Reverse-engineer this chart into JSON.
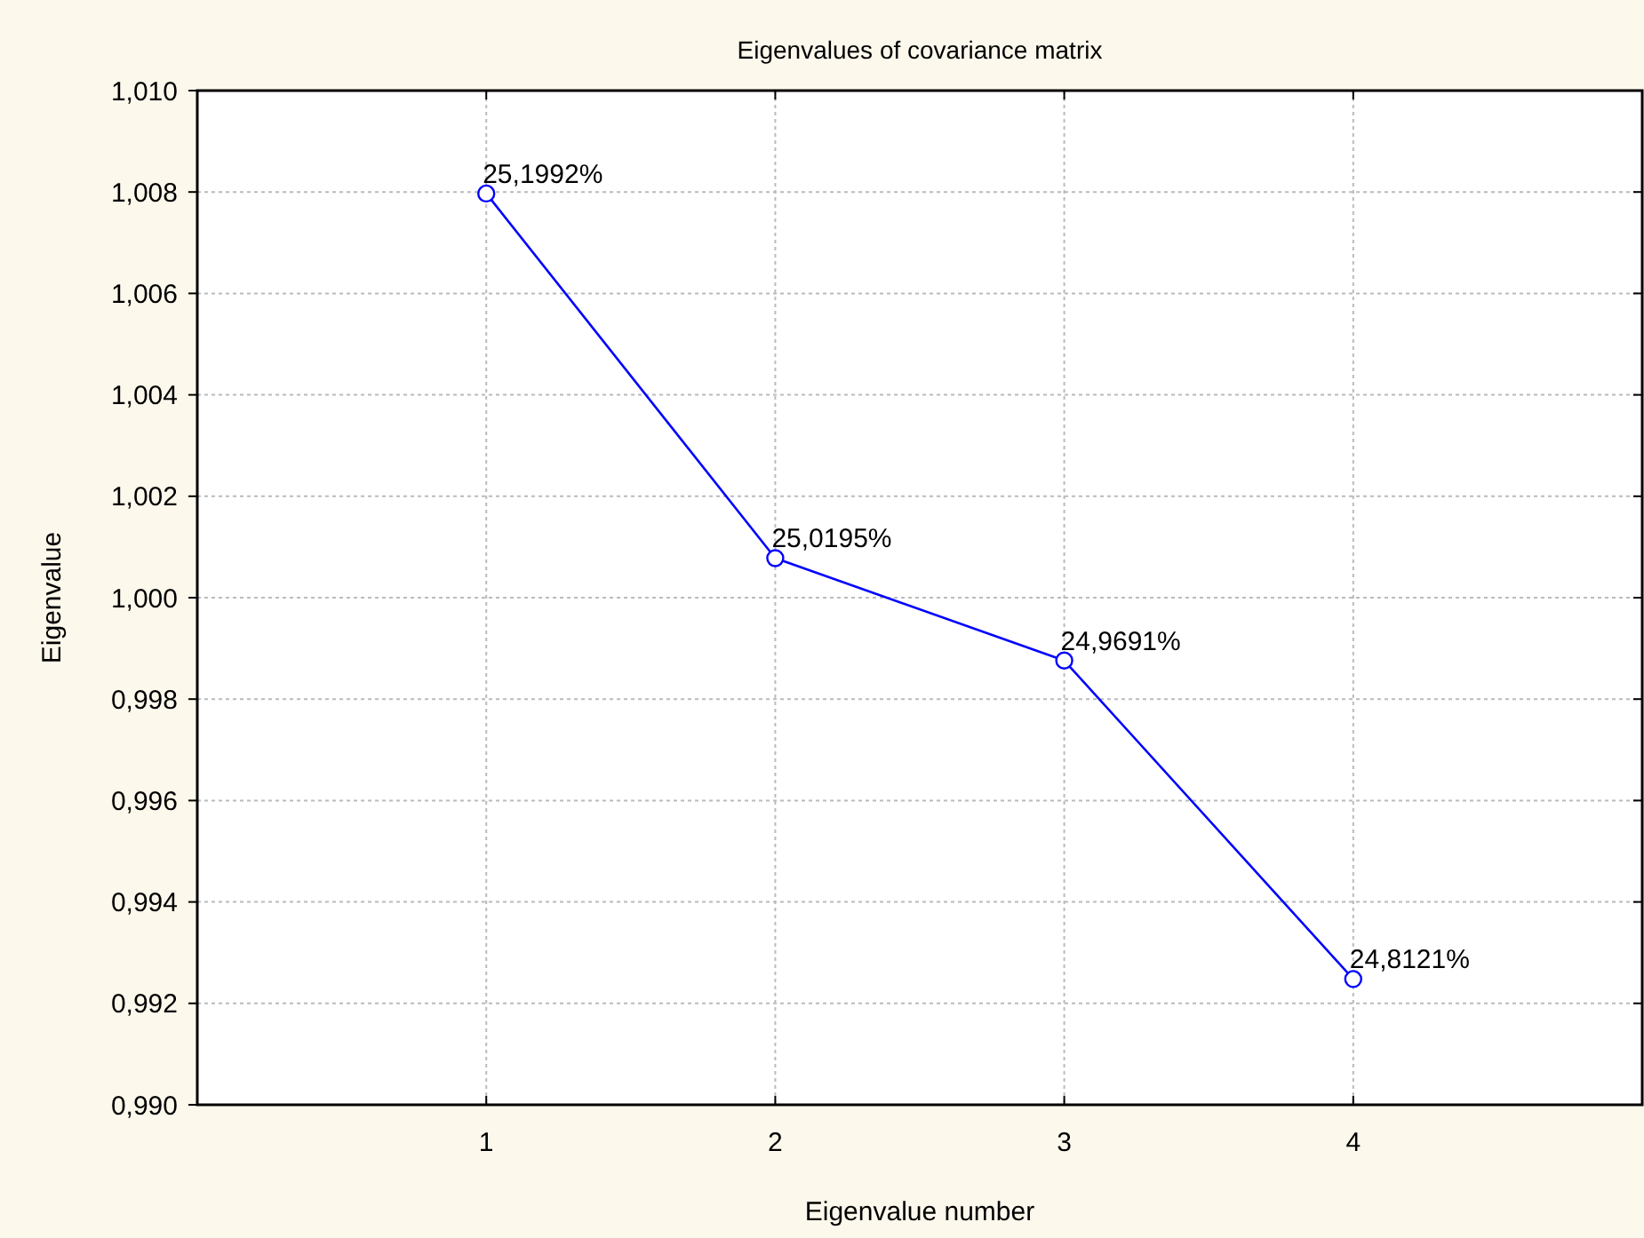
{
  "chart_data": {
    "type": "line",
    "title": "Eigenvalues of covariance matrix",
    "xlabel": "Eigenvalue number",
    "ylabel": "Eigenvalue",
    "x": [
      1,
      2,
      3,
      4
    ],
    "series": [
      {
        "color": "#0000ff",
        "values": [
          1.00797,
          1.00078,
          0.99876,
          0.99248
        ],
        "value_labels": [
          "25,1992%",
          "25,0195%",
          "24,9691%",
          "24,8121%"
        ]
      }
    ],
    "xlim": [
      0,
      5
    ],
    "xticks": [
      1,
      2,
      3,
      4
    ],
    "ylim": [
      0.99,
      1.01
    ],
    "yticks": [
      {
        "value": 0.99,
        "label": "0,990"
      },
      {
        "value": 0.992,
        "label": "0,992"
      },
      {
        "value": 0.994,
        "label": "0,994"
      },
      {
        "value": 0.996,
        "label": "0,996"
      },
      {
        "value": 0.998,
        "label": "0,998"
      },
      {
        "value": 1.0,
        "label": "1,000"
      },
      {
        "value": 1.002,
        "label": "1,002"
      },
      {
        "value": 1.004,
        "label": "1,004"
      },
      {
        "value": 1.006,
        "label": "1,006"
      },
      {
        "value": 1.008,
        "label": "1,008"
      },
      {
        "value": 1.01,
        "label": "1,010"
      }
    ],
    "grid": true,
    "marker": "circle",
    "line_style": "solid"
  }
}
